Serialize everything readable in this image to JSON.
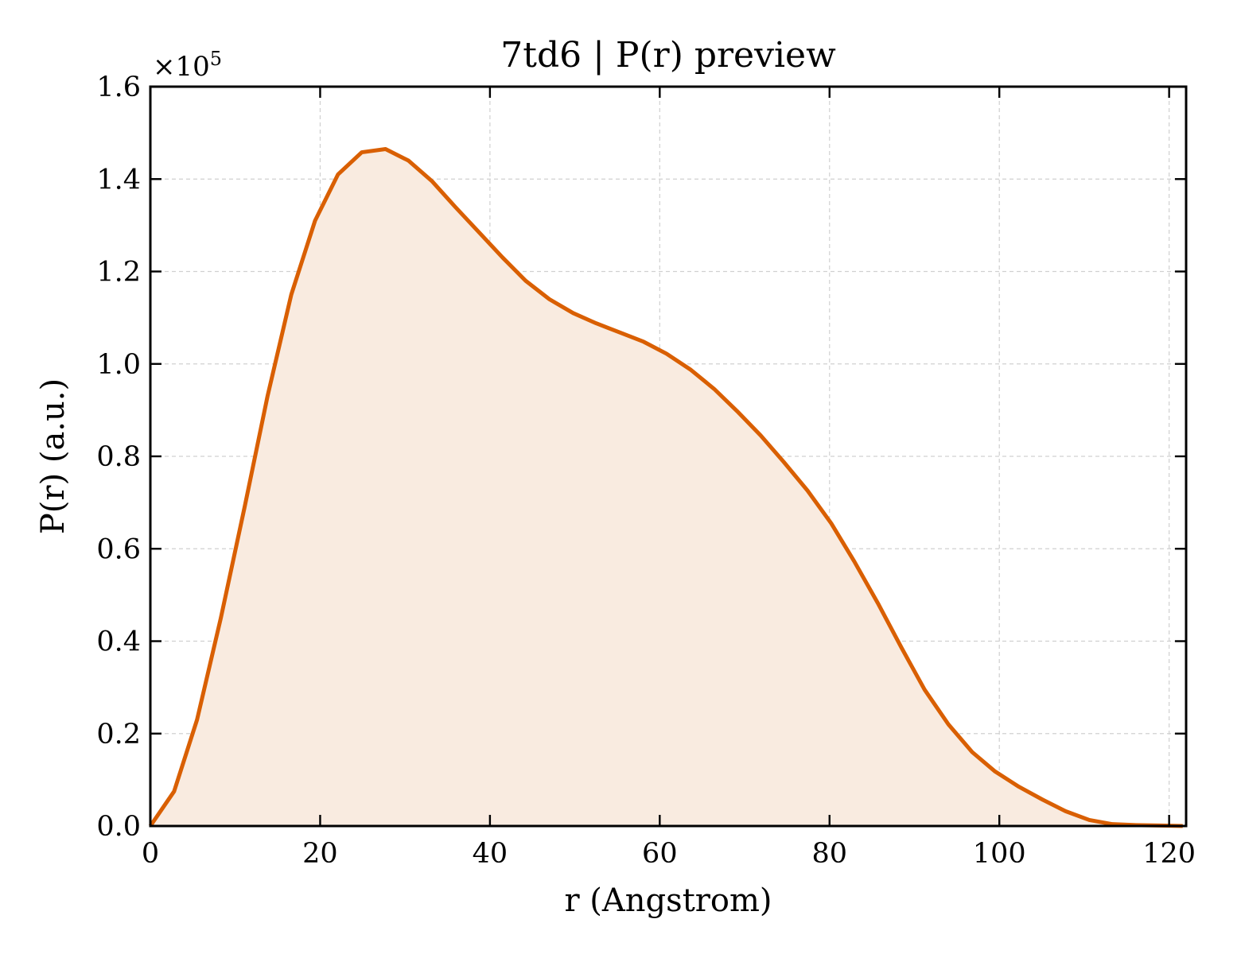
{
  "chart_data": {
    "type": "area",
    "title": "7td6 | P(r) preview",
    "xlabel": "r (Angstrom)",
    "ylabel": "P(r) (a.u.)",
    "y_offset_label": "×10",
    "y_offset_exponent": "5",
    "xlim": [
      0,
      122
    ],
    "ylim": [
      0,
      1.6
    ],
    "grid": true,
    "xticks": [
      0,
      20,
      40,
      60,
      80,
      100,
      120
    ],
    "xtick_labels": [
      "0",
      "20",
      "40",
      "60",
      "80",
      "100",
      "120"
    ],
    "yticks": [
      0.0,
      0.2,
      0.4,
      0.6,
      0.8,
      1.0,
      1.2,
      1.4,
      1.6
    ],
    "ytick_labels": [
      "0.0",
      "0.2",
      "0.4",
      "0.6",
      "0.8",
      "1.0",
      "1.2",
      "1.4",
      "1.6"
    ],
    "colors": {
      "line": "#d95f02",
      "fill": "#f9ebe0"
    },
    "series": [
      {
        "x": [
          0,
          2.8,
          5.5,
          8.3,
          11.1,
          13.8,
          16.6,
          19.4,
          22.1,
          24.9,
          27.7,
          30.4,
          33.2,
          35.9,
          38.7,
          41.5,
          44.2,
          47.0,
          49.8,
          52.5,
          55.3,
          58.1,
          60.8,
          63.6,
          66.4,
          69.1,
          71.9,
          74.6,
          77.4,
          80.2,
          82.9,
          85.7,
          88.5,
          91.2,
          94.0,
          96.8,
          99.5,
          102.3,
          105.1,
          107.8,
          110.6,
          113.3,
          116.1,
          118.9,
          121.6
        ],
        "y": [
          0.0,
          0.075,
          0.23,
          0.45,
          0.69,
          0.93,
          1.15,
          1.31,
          1.41,
          1.458,
          1.465,
          1.44,
          1.395,
          1.34,
          1.285,
          1.23,
          1.18,
          1.14,
          1.11,
          1.088,
          1.068,
          1.048,
          1.022,
          0.988,
          0.946,
          0.898,
          0.845,
          0.788,
          0.726,
          0.655,
          0.573,
          0.482,
          0.385,
          0.295,
          0.22,
          0.16,
          0.118,
          0.085,
          0.057,
          0.032,
          0.013,
          0.004,
          0.002,
          0.001,
          0.0
        ]
      }
    ]
  }
}
